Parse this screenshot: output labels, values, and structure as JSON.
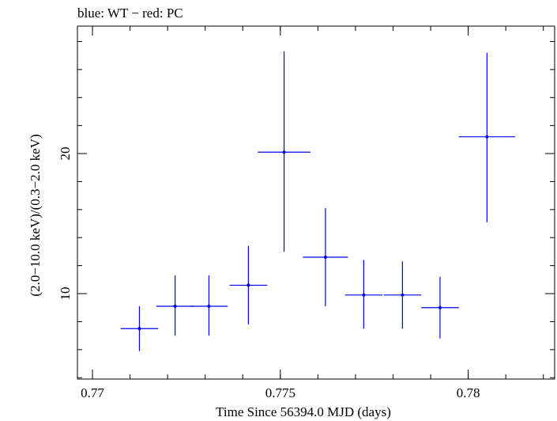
{
  "chart_data": {
    "type": "scatter",
    "title": "blue: WT − red: PC",
    "xlabel": "Time Since 56394.0 MJD (days)",
    "ylabel": "(2.0−10.0 keV)/(0.3−2.0 keV)",
    "xlim": [
      0.7696,
      0.7823
    ],
    "ylim": [
      3.9,
      29.1
    ],
    "x_ticks": [
      0.77,
      0.775,
      0.78
    ],
    "x_tick_labels": [
      "0.77",
      "0.775",
      "0.78"
    ],
    "y_ticks": [
      10,
      20
    ],
    "y_tick_labels": [
      "10",
      "20"
    ],
    "grid": false,
    "series": [
      {
        "color": "#0000ee",
        "points": [
          {
            "x": 0.77125,
            "xerr": 0.0005,
            "y": 7.5,
            "ylo": 5.9,
            "yhi": 9.1
          },
          {
            "x": 0.7722,
            "xerr": 0.0005,
            "y": 9.1,
            "ylo": 7.0,
            "yhi": 11.3
          },
          {
            "x": 0.7731,
            "xerr": 0.0005,
            "y": 9.1,
            "ylo": 7.0,
            "yhi": 11.3
          },
          {
            "x": 0.77415,
            "xerr": 0.0005,
            "y": 10.6,
            "ylo": 7.8,
            "yhi": 13.4
          },
          {
            "x": 0.7751,
            "xerr": 0.0007,
            "y": 20.1,
            "ylo": 13.0,
            "yhi": 27.3
          },
          {
            "x": 0.7762,
            "xerr": 0.0006,
            "y": 12.6,
            "ylo": 9.1,
            "yhi": 16.1
          },
          {
            "x": 0.77722,
            "xerr": 0.0005,
            "y": 9.9,
            "ylo": 7.5,
            "yhi": 12.4
          },
          {
            "x": 0.77825,
            "xerr": 0.0005,
            "y": 9.9,
            "ylo": 7.5,
            "yhi": 12.3
          },
          {
            "x": 0.77925,
            "xerr": 0.0005,
            "y": 9.0,
            "ylo": 6.8,
            "yhi": 11.2
          },
          {
            "x": 0.7805,
            "xerr": 0.00075,
            "y": 21.2,
            "ylo": 15.1,
            "yhi": 27.2
          }
        ]
      }
    ]
  }
}
